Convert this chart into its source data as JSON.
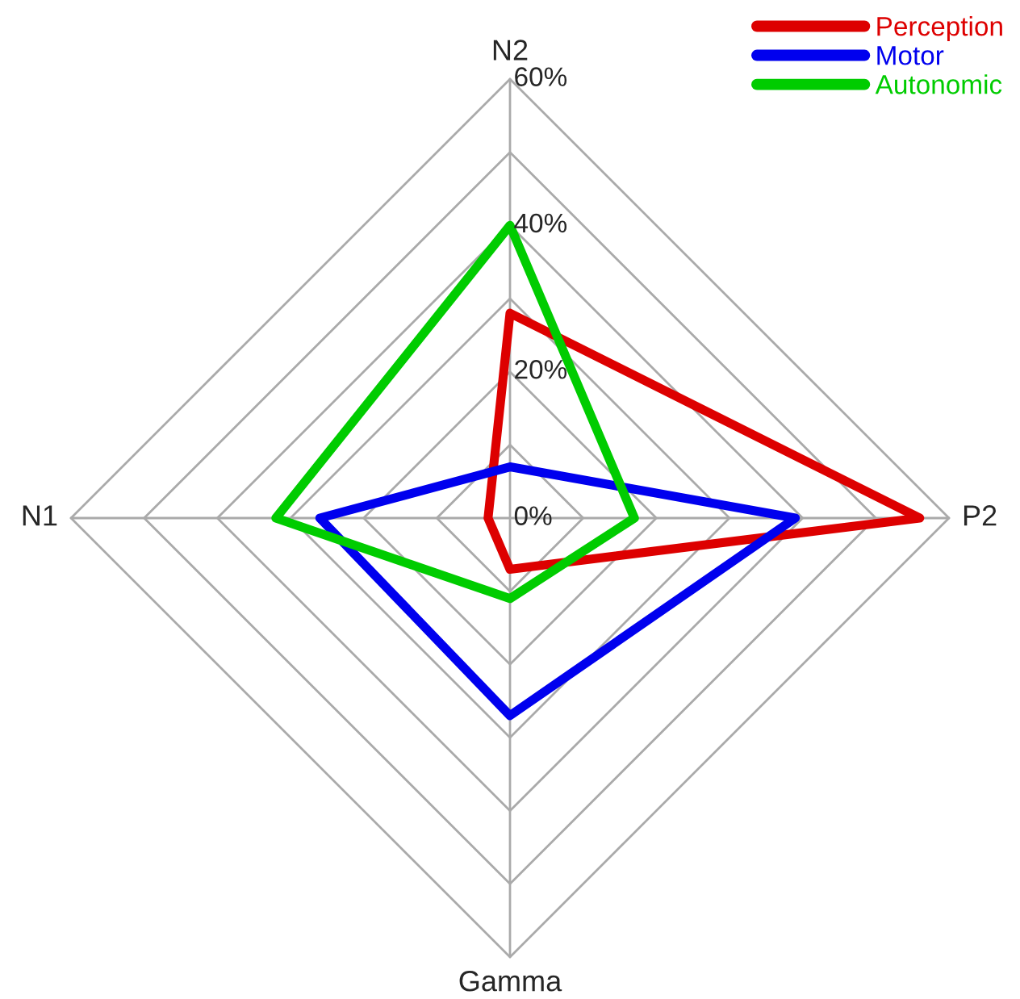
{
  "chart_data": {
    "type": "radar",
    "categories": [
      "N2",
      "P2",
      "Gamma",
      "N1"
    ],
    "ylim": [
      0,
      60
    ],
    "yticks": [
      {
        "value": 0,
        "label": "0%"
      },
      {
        "value": 20,
        "label": "20%"
      },
      {
        "value": 40,
        "label": "40%"
      },
      {
        "value": 60,
        "label": "60%"
      }
    ],
    "series": [
      {
        "name": "Perception",
        "color": "#dd0000",
        "values": [
          28,
          56,
          7,
          3
        ]
      },
      {
        "name": "Motor",
        "color": "#0000ee",
        "values": [
          7,
          39,
          27,
          26
        ]
      },
      {
        "name": "Autonomic",
        "color": "#00cc00",
        "values": [
          40,
          17,
          11,
          32
        ]
      }
    ],
    "grid": true,
    "legend": "top right"
  }
}
